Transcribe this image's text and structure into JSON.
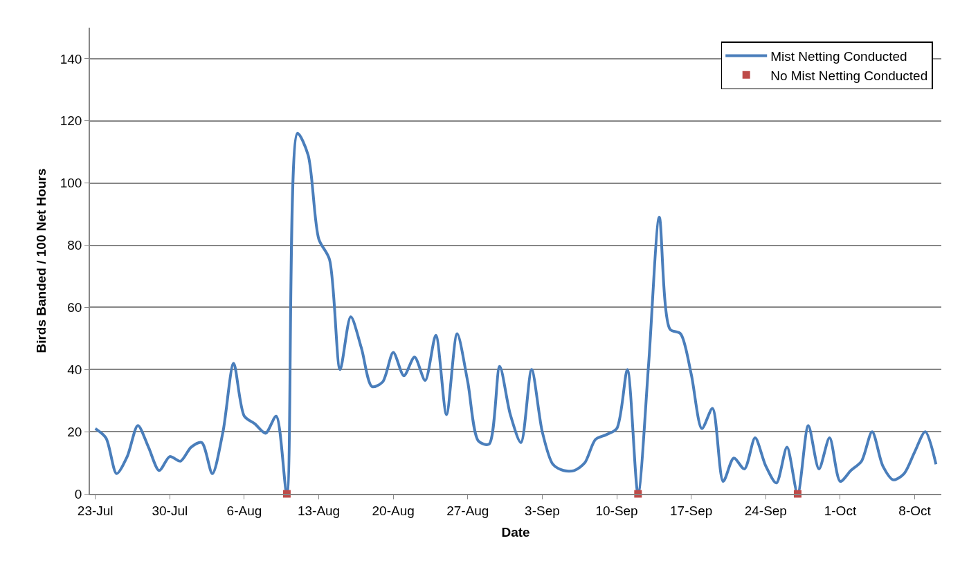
{
  "chart_data": {
    "type": "line",
    "xlabel": "Date",
    "ylabel": "Birds Banded / 100 Net Hours",
    "categories": [
      "23-Jul",
      null,
      null,
      null,
      null,
      null,
      null,
      "30-Jul",
      null,
      null,
      null,
      null,
      null,
      null,
      "6-Aug",
      null,
      null,
      null,
      null,
      null,
      null,
      "13-Aug",
      null,
      null,
      null,
      null,
      null,
      null,
      "20-Aug",
      null,
      null,
      null,
      null,
      null,
      null,
      "27-Aug",
      null,
      null,
      null,
      null,
      null,
      null,
      "3-Sep",
      null,
      null,
      null,
      null,
      null,
      null,
      "10-Sep",
      null,
      null,
      null,
      null,
      null,
      null,
      "17-Sep",
      null,
      null,
      null,
      null,
      null,
      null,
      "24-Sep",
      null,
      null,
      null,
      null,
      null,
      null,
      "1-Oct",
      null,
      null,
      null,
      null,
      null,
      null,
      "8-Oct",
      null,
      null
    ],
    "series": [
      {
        "name": "Mist Netting Conducted",
        "marker": "none",
        "line_style": "solid",
        "color": "#4a7ebb",
        "values": [
          21,
          18,
          6.5,
          12,
          22,
          15,
          7.5,
          12,
          10.5,
          15,
          16.5,
          6.5,
          20,
          42,
          25,
          22.5,
          19.5,
          25,
          0,
          116,
          109,
          82,
          75.5,
          40,
          57,
          47,
          34.5,
          36,
          45.5,
          38,
          44,
          36.5,
          51,
          25.5,
          51.5,
          36,
          17,
          16,
          41,
          25.5,
          16.5,
          40,
          20,
          9.5,
          7.5,
          7.5,
          10,
          17.5,
          19,
          21,
          40,
          0,
          42,
          89,
          53,
          51.5,
          38.5,
          21,
          27.5,
          4,
          11.5,
          8,
          18,
          9,
          3.5,
          15,
          0,
          22,
          8,
          18,
          4,
          7.5,
          10.5,
          20,
          9,
          4.5,
          6.5,
          13.5,
          20,
          9.5
        ]
      },
      {
        "name": "No Mist Netting Conducted",
        "type": "scatter",
        "marker": "square",
        "color": "#be4b48",
        "values": [
          null,
          null,
          null,
          null,
          null,
          null,
          null,
          null,
          null,
          null,
          null,
          null,
          null,
          null,
          null,
          null,
          null,
          null,
          0,
          null,
          null,
          null,
          null,
          null,
          null,
          null,
          null,
          null,
          null,
          null,
          null,
          null,
          null,
          null,
          null,
          null,
          null,
          null,
          null,
          null,
          null,
          null,
          null,
          null,
          null,
          null,
          null,
          null,
          null,
          null,
          null,
          0,
          null,
          null,
          null,
          null,
          null,
          null,
          null,
          null,
          null,
          null,
          null,
          null,
          null,
          null,
          0,
          null,
          null,
          null,
          null,
          null,
          null,
          null,
          null,
          null,
          null,
          null,
          null,
          null
        ]
      }
    ],
    "ylim": [
      0,
      150
    ],
    "yticks": [
      0,
      20,
      40,
      60,
      80,
      100,
      120,
      140
    ],
    "grid": "y",
    "legend": "top right"
  }
}
